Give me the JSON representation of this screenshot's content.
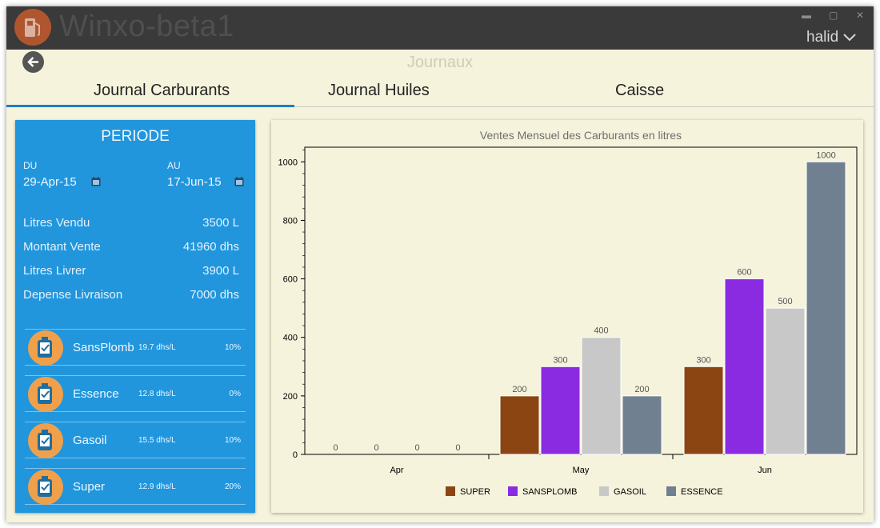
{
  "window": {
    "app_title": "Winxo-beta1",
    "controls": {
      "minimize": "▬",
      "maximize": "▢",
      "close": "✕"
    },
    "user": {
      "name": "halid",
      "menu_icon": "chevron-down-icon"
    }
  },
  "header": {
    "page_title": "Journaux",
    "back_icon": "arrow-left-icon",
    "tabs": [
      {
        "label": "Journal Carburants",
        "active": true
      },
      {
        "label": "Journal Huiles",
        "active": false
      },
      {
        "label": "Caisse",
        "active": false
      }
    ]
  },
  "periode": {
    "title": "PERIODE",
    "du_label": "DU",
    "du_value": "29-Apr-15",
    "au_label": "AU",
    "au_value": "17-Jun-15"
  },
  "stats": [
    {
      "label": "Litres Vendu",
      "value": "3500 L"
    },
    {
      "label": "Montant Vente",
      "value": "41960 dhs"
    },
    {
      "label": "Litres Livrer",
      "value": "3900 L"
    },
    {
      "label": "Depense Livraison",
      "value": "7000 dhs"
    }
  ],
  "fuels": [
    {
      "name": "SansPlomb",
      "price": "19.7 dhs/L",
      "percent": "10%"
    },
    {
      "name": "Essence",
      "price": "12.8 dhs/L",
      "percent": "0%"
    },
    {
      "name": "Gasoil",
      "price": "15.5 dhs/L",
      "percent": "10%"
    },
    {
      "name": "Super",
      "price": "12.9 dhs/L",
      "percent": "20%"
    }
  ],
  "colors": {
    "accent": "#2196dc",
    "tab_underline": "#1f7dc6",
    "background": "#f5f3dc",
    "titlebar": "#3a3a3a",
    "badge": "#f0a04b"
  },
  "chart_data": {
    "type": "bar",
    "title": "Ventes Mensuel des Carburants en litres",
    "categories": [
      "Apr",
      "May",
      "Jun"
    ],
    "series": [
      {
        "name": "SUPER",
        "color": "#8b4513",
        "values": [
          0,
          200,
          300
        ]
      },
      {
        "name": "SANSPLOMB",
        "color": "#8a2be2",
        "values": [
          0,
          300,
          600
        ]
      },
      {
        "name": "GASOIL",
        "color": "#c8c8c8",
        "values": [
          0,
          400,
          500
        ]
      },
      {
        "name": "ESSENCE",
        "color": "#708090",
        "values": [
          0,
          200,
          1000
        ]
      }
    ],
    "ylim": [
      0,
      1050
    ],
    "yticks": [
      0,
      200,
      400,
      600,
      800,
      1000
    ],
    "xlabel": "",
    "ylabel": "",
    "legend": "bottom-center"
  }
}
